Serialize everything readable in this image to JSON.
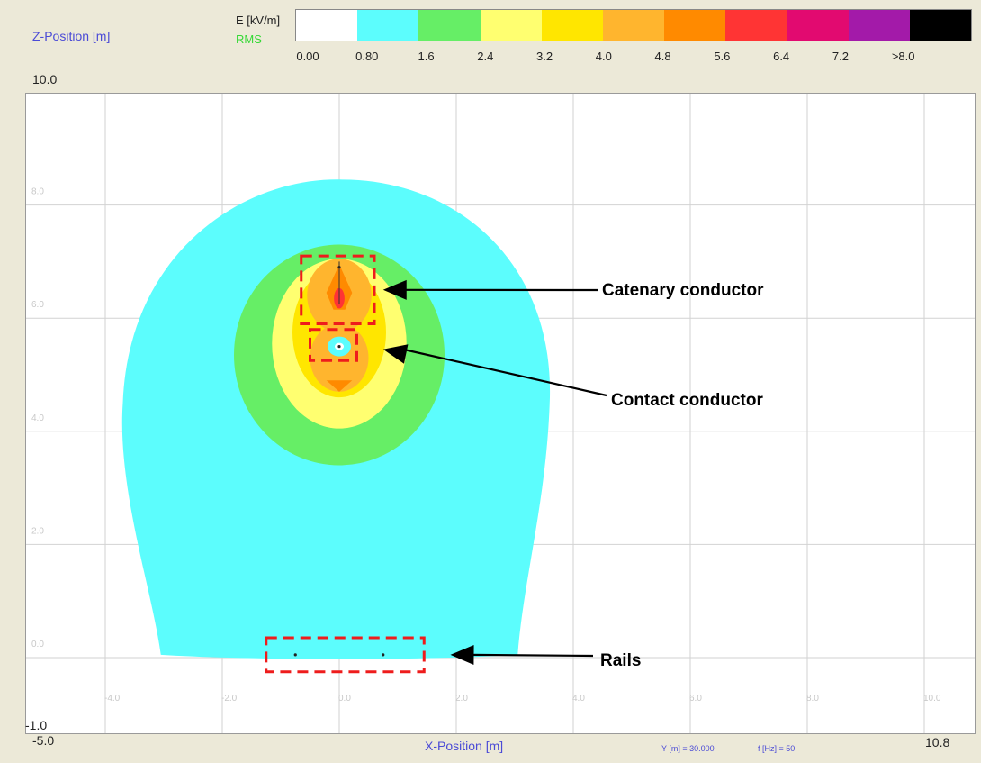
{
  "chart_data": {
    "type": "heatmap",
    "xlabel": "X-Position [m]",
    "ylabel": "Z-Position [m]",
    "xlim": [
      -5.0,
      10.8
    ],
    "ylim": [
      -1.0,
      10.0
    ],
    "x_ticks": [
      -4.0,
      -2.0,
      0.0,
      2.0,
      4.0,
      6.0,
      8.0,
      10.0
    ],
    "x_tick_labels": [
      "-4.0",
      "-2.0",
      "0.0",
      "2.0",
      "4.0",
      "6.0",
      "8.0",
      "10.0"
    ],
    "y_ticks": [
      0.0,
      2.0,
      4.0,
      6.0,
      8.0
    ],
    "y_tick_labels": [
      "0.0",
      "2.0",
      "4.0",
      "6.0",
      "8.0"
    ],
    "x_min_label": "-5.0",
    "x_max_label": "10.8",
    "y_min_label": "-1.0",
    "y_max_label": "10.0",
    "grid": true,
    "colorbar": {
      "title": "E [kV/m]",
      "subtitle": "RMS",
      "labels": [
        "0.00",
        "0.80",
        "1.6",
        "2.4",
        "3.2",
        "4.0",
        "4.8",
        "5.6",
        "6.4",
        "7.2",
        ">8.0"
      ],
      "colors": [
        "#ffffff",
        "#5cfdfd",
        "#66ee66",
        "#ffff70",
        "#ffe600",
        "#ffb52e",
        "#ff8a00",
        "#ff3434",
        "#e20a70",
        "#a31aa9",
        "#000000"
      ]
    },
    "parameters": [
      "Y [m] = 30.000",
      "f [Hz] = 50"
    ],
    "conductors": [
      {
        "name": "catenary",
        "x": 0.0,
        "z": 6.9
      },
      {
        "name": "contact",
        "x": 0.0,
        "z": 5.5
      },
      {
        "name": "rail-left",
        "x": -0.75,
        "z": 0.05
      },
      {
        "name": "rail-right",
        "x": 0.75,
        "z": 0.05
      }
    ],
    "annotations": [
      {
        "label": "Catenary conductor",
        "target": "catenary",
        "box": {
          "x0": -0.65,
          "x1": 0.6,
          "z0": 5.9,
          "z1": 7.1
        },
        "point_at": {
          "x": 0.75,
          "z": 6.5
        }
      },
      {
        "label": "Contact conductor",
        "target": "contact",
        "box": {
          "x0": -0.5,
          "x1": 0.3,
          "z0": 5.25,
          "z1": 5.8
        },
        "point_at": {
          "x": 0.75,
          "z": 5.45
        }
      },
      {
        "label": "Rails",
        "target": "rails",
        "box": {
          "x0": -1.25,
          "x1": 1.45,
          "z0": -0.25,
          "z1": 0.35
        },
        "point_at": {
          "x": 1.9,
          "z": 0.05
        }
      }
    ]
  }
}
